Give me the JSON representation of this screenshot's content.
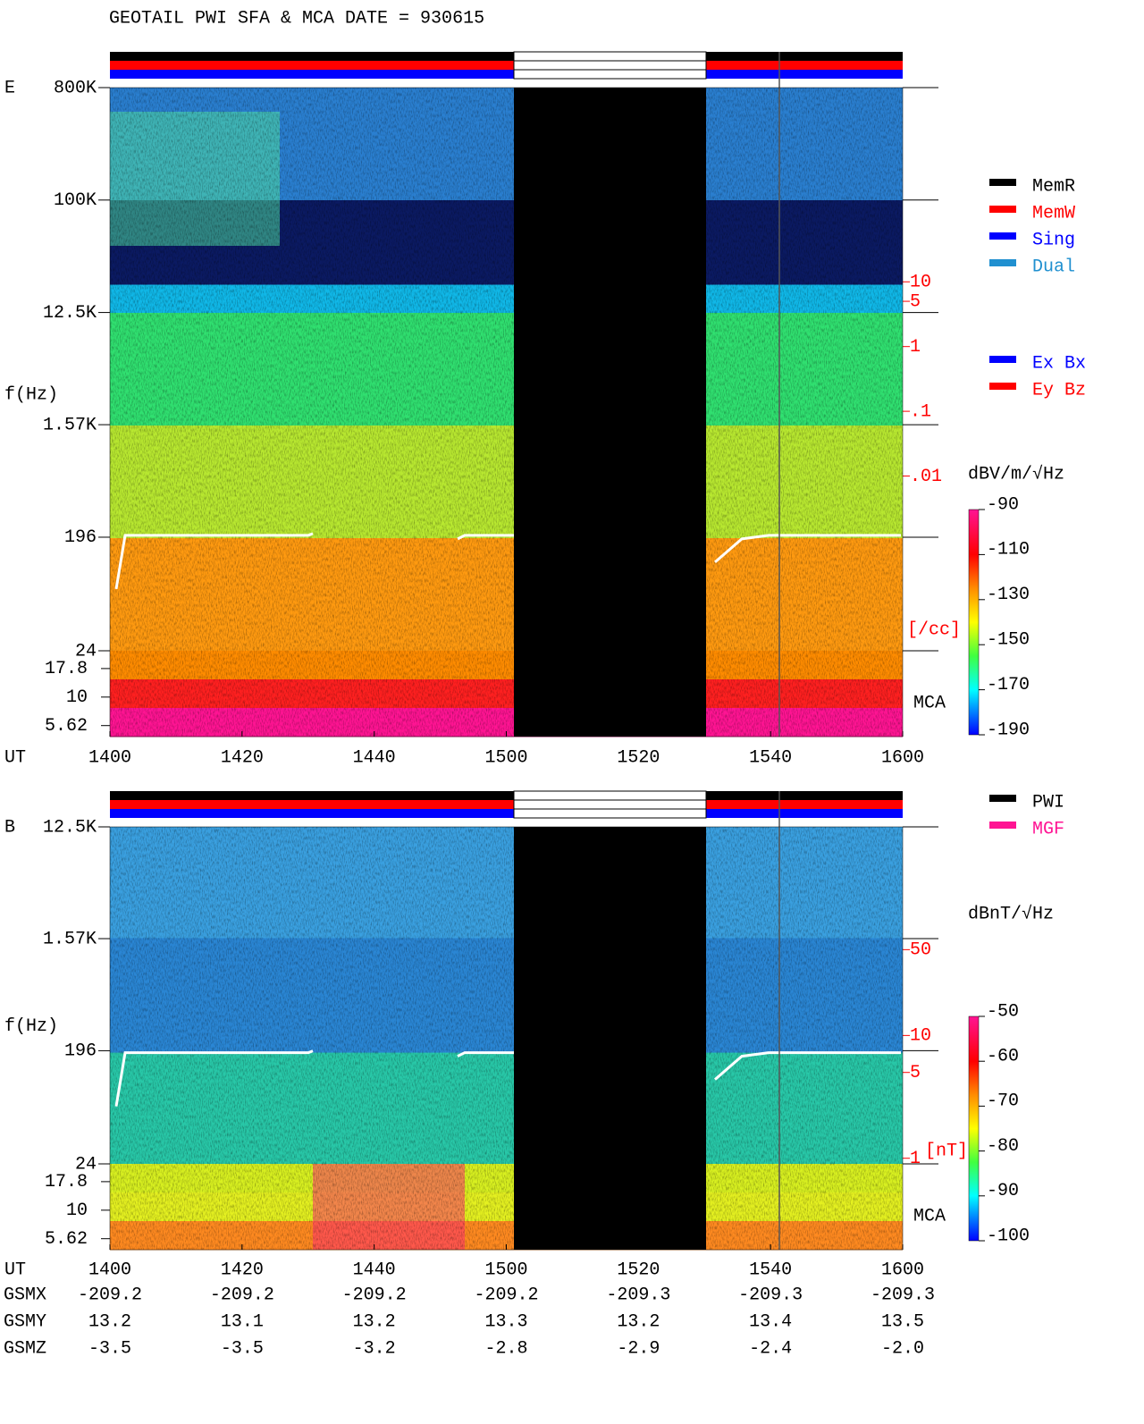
{
  "chart_data": [
    {
      "type": "spectrogram",
      "title": "GEOTAIL  PWI SFA & MCA   DATE = 930615",
      "panel_label": "E",
      "ylabel": "f(Hz)",
      "xlabel": "UT",
      "xticks": [
        "1400",
        "1420",
        "1440",
        "1500",
        "1520",
        "1540",
        "1600"
      ],
      "yscale": "log",
      "ylim": [
        24,
        800000
      ],
      "yticks": [
        {
          "value": 800000,
          "label": "800K"
        },
        {
          "value": 100000,
          "label": "100K"
        },
        {
          "value": 12500,
          "label": "12.5K"
        },
        {
          "value": 1570,
          "label": "1.57K"
        },
        196,
        24
      ],
      "mca_label": "MCA",
      "mca_ylim": [
        4.5,
        25.5
      ],
      "mca_ticks": [
        17.8,
        10,
        5.62
      ],
      "y2lim": [
        2e-05,
        10000
      ],
      "y2ticks": [
        10,
        5,
        1,
        {
          "value": 0.1,
          "label": ".1"
        },
        {
          "value": 0.01,
          "label": ".01"
        }
      ],
      "y2label": "[/cc]",
      "y2color": "#ff0000",
      "colorbar": {
        "label": "dBV/m/√Hz",
        "lim": [
          -190,
          -90
        ],
        "ticks": [
          -90,
          -110,
          -130,
          -150,
          -170,
          -190
        ]
      },
      "mode_legend": [
        {
          "label": "MemR",
          "color": "#000000"
        },
        {
          "label": "MemW",
          "color": "#ff0000"
        },
        {
          "label": "Sing",
          "color": "#0000ff"
        },
        {
          "label": "Dual",
          "color": "#2090d0"
        }
      ],
      "component_legend": [
        {
          "label": "Ex Bx",
          "color": "#0000ff"
        },
        {
          "label": "Ey Bz",
          "color": "#ff0000"
        }
      ]
    },
    {
      "type": "spectrogram",
      "panel_label": "B",
      "ylabel": "f(Hz)",
      "xlabel": "UT",
      "xticks": [
        "1400",
        "1420",
        "1440",
        "1500",
        "1520",
        "1540",
        "1600"
      ],
      "yscale": "log",
      "ylim": [
        24,
        12500
      ],
      "yticks": [
        {
          "value": 12500,
          "label": "12.5K"
        },
        {
          "value": 1570,
          "label": "1.57K"
        },
        196,
        24
      ],
      "mca_label": "MCA",
      "mca_ylim": [
        4.5,
        25.5
      ],
      "mca_ticks": [
        17.8,
        10,
        5.62
      ],
      "y2lim": [
        0.9,
        500
      ],
      "y2ticks": [
        50,
        10,
        5,
        1
      ],
      "y2label": "[nT]",
      "y2color": "#ff0000",
      "colorbar": {
        "label": "dBnT/√Hz",
        "lim": [
          -100,
          -50
        ],
        "ticks": [
          -50,
          -60,
          -70,
          -80,
          -90,
          -100
        ]
      },
      "instrument_legend": [
        {
          "label": "PWI",
          "color": "#000000"
        },
        {
          "label": "MGF",
          "color": "#ff1493"
        }
      ],
      "orbit": {
        "rows": [
          {
            "label": "GSMX",
            "values": [
              "-209.2",
              "-209.2",
              "-209.2",
              "-209.2",
              "-209.3",
              "-209.3",
              "-209.3"
            ]
          },
          {
            "label": "GSMY",
            "values": [
              "13.2",
              "13.1",
              "13.2",
              "13.3",
              "13.2",
              "13.4",
              "13.5"
            ]
          },
          {
            "label": "GSMZ",
            "values": [
              "-3.5",
              "-3.5",
              "-3.2",
              "-2.8",
              "-2.9",
              "-2.4",
              "-2.0"
            ]
          }
        ]
      }
    }
  ]
}
